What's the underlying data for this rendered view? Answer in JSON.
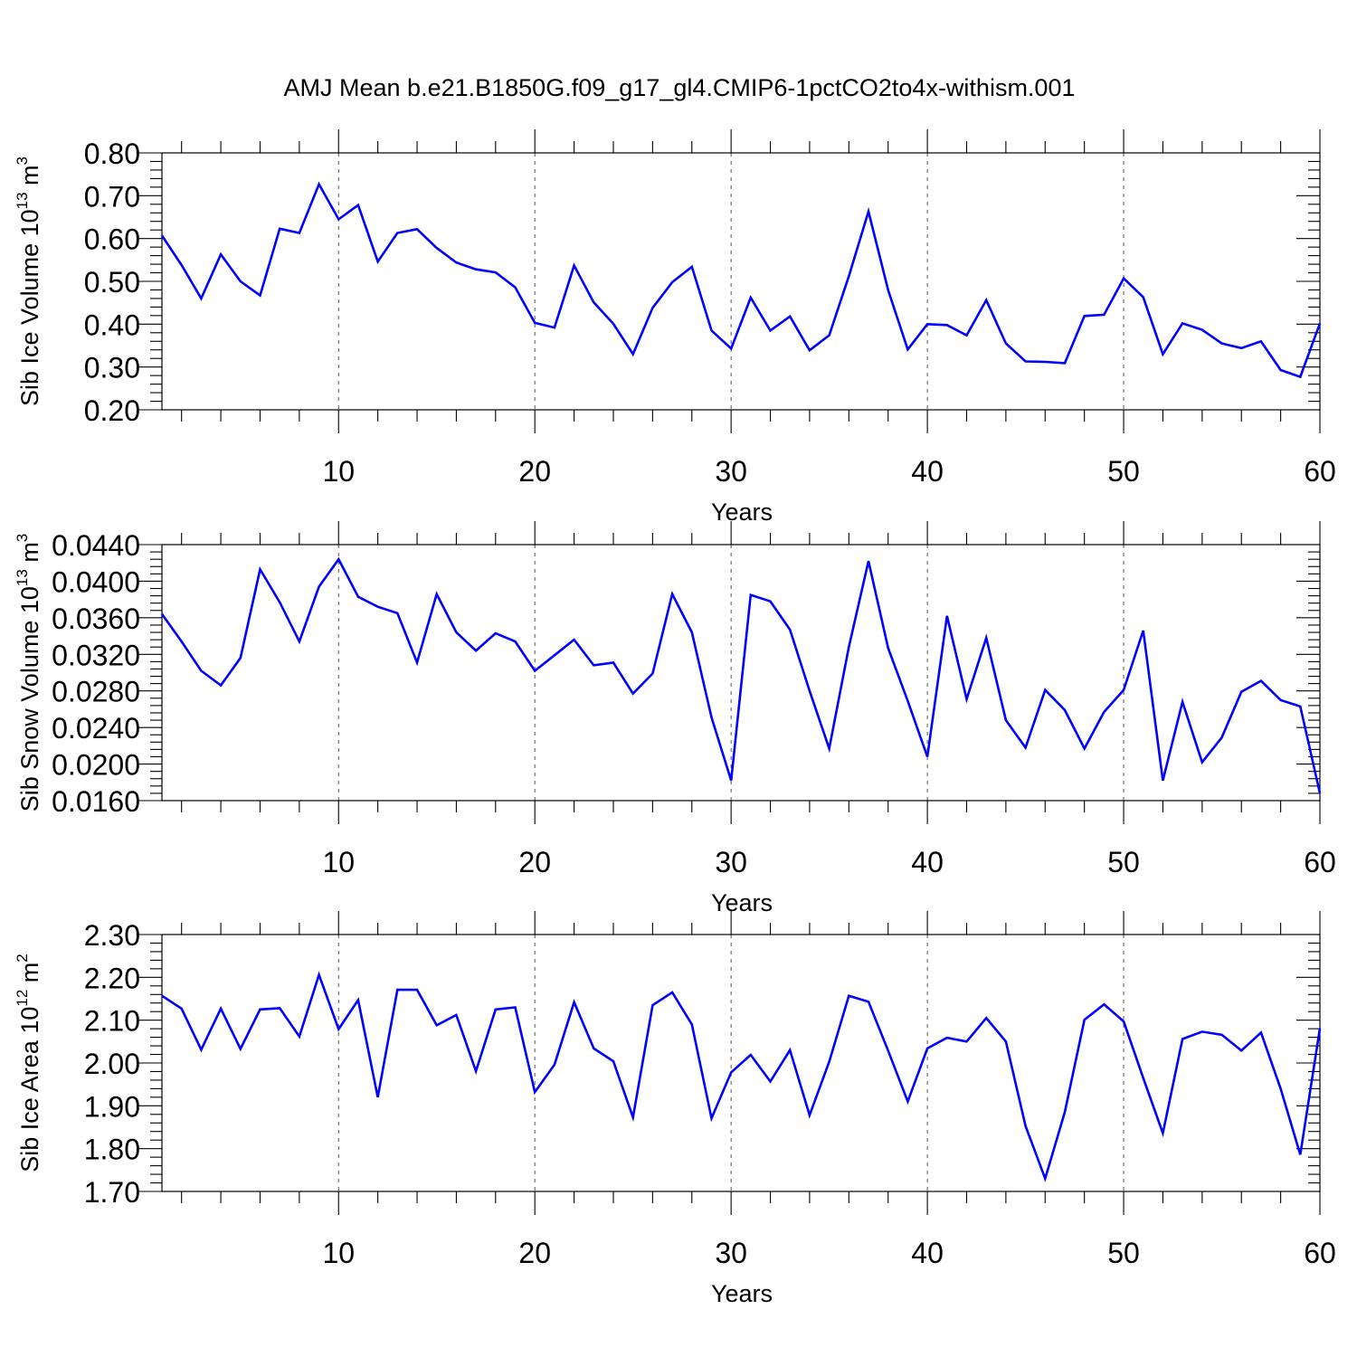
{
  "title": "AMJ Mean b.e21.B1850G.f09_g17_gl4.CMIP6-1pctCO2to4x-withism.001",
  "colors": {
    "line": "#0000ff",
    "axis": "#000000",
    "grid": "#555555"
  },
  "chart_data": [
    {
      "type": "line",
      "ylabel": "Sib Ice Volume 10",
      "ylabel_exp": "13",
      "ylabel_unit": " m",
      "ylabel_unit_exp": "3",
      "xlabel": "Years",
      "xlim": [
        1,
        60
      ],
      "ylim": [
        0.2,
        0.8
      ],
      "x_ticks": [
        10,
        20,
        30,
        40,
        50,
        60
      ],
      "y_ticks": [
        "0.20",
        "0.30",
        "0.40",
        "0.50",
        "0.60",
        "0.70",
        "0.80"
      ],
      "grid": "vertical dashed at major x ticks",
      "x": [
        1,
        2,
        3,
        4,
        5,
        6,
        7,
        8,
        9,
        10,
        11,
        12,
        13,
        14,
        15,
        16,
        17,
        18,
        19,
        20,
        21,
        22,
        23,
        24,
        25,
        26,
        27,
        28,
        29,
        30,
        31,
        32,
        33,
        34,
        35,
        36,
        37,
        38,
        39,
        40,
        41,
        42,
        43,
        44,
        45,
        46,
        47,
        48,
        49,
        50,
        51,
        52,
        53,
        54,
        55,
        56,
        57,
        58,
        59,
        60
      ],
      "values": [
        0.607,
        0.538,
        0.46,
        0.563,
        0.5,
        0.467,
        0.623,
        0.613,
        0.727,
        0.645,
        0.678,
        0.546,
        0.613,
        0.622,
        0.578,
        0.544,
        0.528,
        0.521,
        0.486,
        0.403,
        0.392,
        0.537,
        0.451,
        0.401,
        0.33,
        0.438,
        0.498,
        0.534,
        0.385,
        0.343,
        0.462,
        0.385,
        0.418,
        0.339,
        0.374,
        0.512,
        0.663,
        0.48,
        0.341,
        0.4,
        0.398,
        0.374,
        0.456,
        0.355,
        0.313,
        0.312,
        0.309,
        0.419,
        0.422,
        0.507,
        0.463,
        0.33,
        0.402,
        0.387,
        0.355,
        0.344,
        0.36,
        0.293,
        0.277,
        0.402
      ]
    },
    {
      "type": "line",
      "ylabel": "Sib Snow Volume 10",
      "ylabel_exp": "13",
      "ylabel_unit": " m",
      "ylabel_unit_exp": "3",
      "xlabel": "Years",
      "xlim": [
        1,
        60
      ],
      "ylim": [
        0.016,
        0.044
      ],
      "x_ticks": [
        10,
        20,
        30,
        40,
        50,
        60
      ],
      "y_ticks": [
        "0.0160",
        "0.0200",
        "0.0240",
        "0.0280",
        "0.0320",
        "0.0360",
        "0.0400",
        "0.0440"
      ],
      "grid": "vertical dashed at major x ticks",
      "x": [
        1,
        2,
        3,
        4,
        5,
        6,
        7,
        8,
        9,
        10,
        11,
        12,
        13,
        14,
        15,
        16,
        17,
        18,
        19,
        20,
        21,
        22,
        23,
        24,
        25,
        26,
        27,
        28,
        29,
        30,
        31,
        32,
        33,
        34,
        35,
        36,
        37,
        38,
        39,
        40,
        41,
        42,
        43,
        44,
        45,
        46,
        47,
        48,
        49,
        50,
        51,
        52,
        53,
        54,
        55,
        56,
        57,
        58,
        59,
        60
      ],
      "values": [
        0.0364,
        0.0334,
        0.0302,
        0.0286,
        0.0316,
        0.0413,
        0.0377,
        0.0334,
        0.0394,
        0.0424,
        0.0383,
        0.0372,
        0.0365,
        0.0311,
        0.0386,
        0.0344,
        0.0324,
        0.0343,
        0.0334,
        0.0302,
        0.0319,
        0.0336,
        0.0308,
        0.0311,
        0.0277,
        0.0299,
        0.0386,
        0.0344,
        0.0251,
        0.0182,
        0.0385,
        0.0378,
        0.0347,
        0.028,
        0.0217,
        0.0328,
        0.0422,
        0.0327,
        0.0269,
        0.0208,
        0.0362,
        0.0271,
        0.0338,
        0.0248,
        0.0218,
        0.0281,
        0.0259,
        0.0217,
        0.0257,
        0.0281,
        0.0346,
        0.0182,
        0.0268,
        0.0202,
        0.0229,
        0.0279,
        0.0291,
        0.027,
        0.0263,
        0.0168
      ]
    },
    {
      "type": "line",
      "ylabel": "Sib Ice Area 10",
      "ylabel_exp": "12",
      "ylabel_unit": " m",
      "ylabel_unit_exp": "2",
      "xlabel": "Years",
      "xlim": [
        1,
        60
      ],
      "ylim": [
        1.7,
        2.3
      ],
      "x_ticks": [
        10,
        20,
        30,
        40,
        50,
        60
      ],
      "y_ticks": [
        "1.70",
        "1.80",
        "1.90",
        "2.00",
        "2.10",
        "2.20",
        "2.30"
      ],
      "grid": "vertical dashed at major x ticks",
      "x": [
        1,
        2,
        3,
        4,
        5,
        6,
        7,
        8,
        9,
        10,
        11,
        12,
        13,
        14,
        15,
        16,
        17,
        18,
        19,
        20,
        21,
        22,
        23,
        24,
        25,
        26,
        27,
        28,
        29,
        30,
        31,
        32,
        33,
        34,
        35,
        36,
        37,
        38,
        39,
        40,
        41,
        42,
        43,
        44,
        45,
        46,
        47,
        48,
        49,
        50,
        51,
        52,
        53,
        54,
        55,
        56,
        57,
        58,
        59,
        60
      ],
      "values": [
        2.157,
        2.127,
        2.031,
        2.127,
        2.033,
        2.125,
        2.128,
        2.062,
        2.206,
        2.079,
        2.147,
        1.92,
        2.171,
        2.171,
        2.088,
        2.112,
        1.981,
        2.125,
        2.13,
        1.932,
        1.996,
        2.142,
        2.034,
        2.004,
        1.873,
        2.135,
        2.165,
        2.09,
        1.871,
        1.978,
        2.019,
        1.957,
        2.03,
        1.878,
        2.003,
        2.157,
        2.143,
        2.029,
        1.91,
        2.034,
        2.059,
        2.05,
        2.105,
        2.05,
        1.853,
        1.73,
        1.885,
        2.101,
        2.137,
        2.097,
        1.965,
        1.836,
        2.056,
        2.073,
        2.066,
        2.029,
        2.071,
        1.94,
        1.786,
        2.081
      ]
    }
  ]
}
